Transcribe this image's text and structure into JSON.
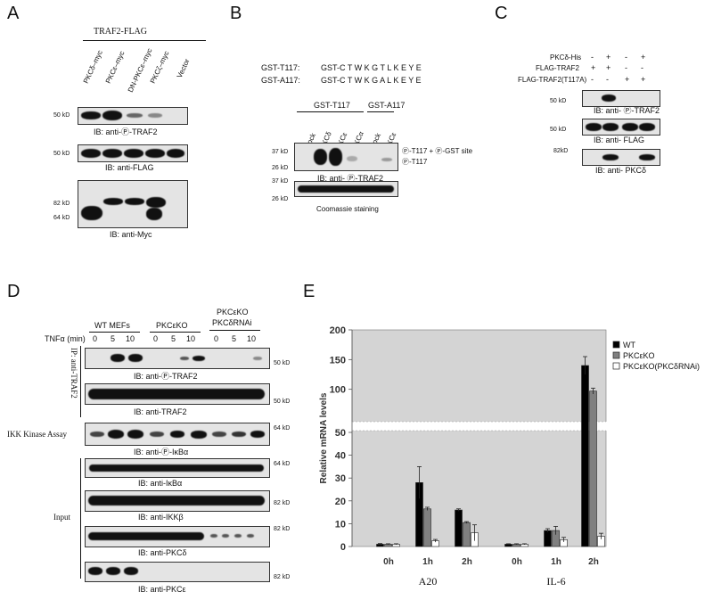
{
  "panels": {
    "a": {
      "letter": "A",
      "group_header": "TRAF2-FLAG",
      "lanes": [
        "PKCδ–myc",
        "PKCε–myc",
        "DN-PKCε–myc",
        "PKCζ–myc",
        "Vector"
      ],
      "blots": [
        {
          "ib": "IB: anti-Ⓟ-TRAF2",
          "markers": [
            "50 kD"
          ]
        },
        {
          "ib": "IB: anti-FLAG",
          "markers": [
            "50 kD"
          ]
        },
        {
          "ib": "IB: anti-Myc",
          "markers": [
            "82 kD",
            "64 kD"
          ]
        }
      ]
    },
    "b": {
      "letter": "B",
      "seq1_name": "GST-T117:",
      "seq1": "GST-C T W K G T L K E Y E",
      "seq2_name": "GST-A117:",
      "seq2": "GST-C T W K G A L K E Y E",
      "group1": "GST-T117",
      "group2": "GST-A117",
      "lanes": [
        "mock",
        "PKCδ",
        "PKCε",
        "PKCα",
        "mock",
        "PKCε"
      ],
      "annot1": "Ⓟ-T117 + Ⓟ-GST site",
      "annot2": "Ⓟ-T117",
      "blots": [
        {
          "ib": "IB: anti- Ⓟ-TRAF2",
          "markers": [
            "37 kD",
            "26 kD"
          ]
        },
        {
          "ib": "Coomassie staining",
          "markers": [
            "37 kD",
            "26 kD"
          ]
        }
      ]
    },
    "c": {
      "letter": "C",
      "rows": [
        {
          "label": "PKCδ-His",
          "signs": [
            "-",
            "+",
            "-",
            "+"
          ]
        },
        {
          "label": "FLAG-TRAF2",
          "signs": [
            "+",
            "+",
            "-",
            "-"
          ]
        },
        {
          "label": "FLAG-TRAF2(T117A)",
          "signs": [
            "-",
            "-",
            "+",
            "+"
          ]
        }
      ],
      "blots": [
        {
          "ib": "IB: anti- Ⓟ-TRAF2",
          "markers": [
            "50 kD"
          ]
        },
        {
          "ib": "IB: anti- FLAG",
          "markers": [
            "50 kD"
          ]
        },
        {
          "ib": "IB: anti- PKCδ",
          "markers": [
            "82kD"
          ]
        }
      ]
    },
    "d": {
      "letter": "D",
      "groups": [
        "WT MEFs",
        "PKCεKO",
        "PKCεKO",
        "PKCδRNAi"
      ],
      "tnf_label": "TNFα (min)",
      "times": [
        "0",
        "5",
        "10",
        "0",
        "5",
        "10",
        "0",
        "5",
        "10"
      ],
      "ip_label": "IP: anti-TRAF2",
      "ikk_label": "IKK Kinase Assay",
      "input_label": "Input",
      "blots": [
        {
          "ib": "IB: anti-Ⓟ-TRAF2",
          "marker": "50 kD"
        },
        {
          "ib": "IB: anti-TRAF2",
          "marker": "50 kD"
        },
        {
          "ib": "IB: anti-Ⓟ-IκBα",
          "marker": "64 kD"
        },
        {
          "ib": "IB: anti-IκBα",
          "marker": "64 kD"
        },
        {
          "ib": "IB: anti-IKKβ",
          "marker": "82 kD"
        },
        {
          "ib": "IB: anti-PKCδ",
          "marker": "82 kD"
        },
        {
          "ib": "IB: anti-PKCε",
          "marker": "82 kD"
        }
      ]
    },
    "e": {
      "letter": "E"
    }
  },
  "colors": {
    "wt": "#000000",
    "ko": "#808080",
    "rnai": "#ffffff",
    "plot_bg": "#d4d4d4"
  },
  "chart_data": {
    "type": "bar",
    "title": "",
    "ylabel": "Relative mRNA levels",
    "xlabel": "",
    "y_ticks_lower": [
      0,
      10,
      20,
      30,
      40,
      50
    ],
    "y_ticks_upper": [
      100,
      150,
      200
    ],
    "axis_break": "between 50 and 100",
    "groups": [
      "A20",
      "IL-6"
    ],
    "categories": [
      "0h",
      "1h",
      "2h",
      "0h",
      "1h",
      "2h"
    ],
    "legend_position": "top-right",
    "series": [
      {
        "name": "WT",
        "values": [
          1,
          28,
          16,
          1,
          7,
          140
        ],
        "errors": [
          0.3,
          7,
          0.5,
          0.2,
          0.8,
          15
        ]
      },
      {
        "name": "PKCεKO",
        "values": [
          1,
          16.5,
          10.5,
          1,
          7,
          97
        ],
        "errors": [
          0.2,
          0.7,
          0.4,
          0.2,
          1.8,
          5
        ]
      },
      {
        "name": "PKCεKO(PKCδRNAi)",
        "values": [
          1,
          2.5,
          6,
          1,
          3,
          4.5
        ],
        "errors": [
          0.2,
          0.6,
          3.5,
          0.2,
          1,
          1.3
        ]
      }
    ]
  }
}
